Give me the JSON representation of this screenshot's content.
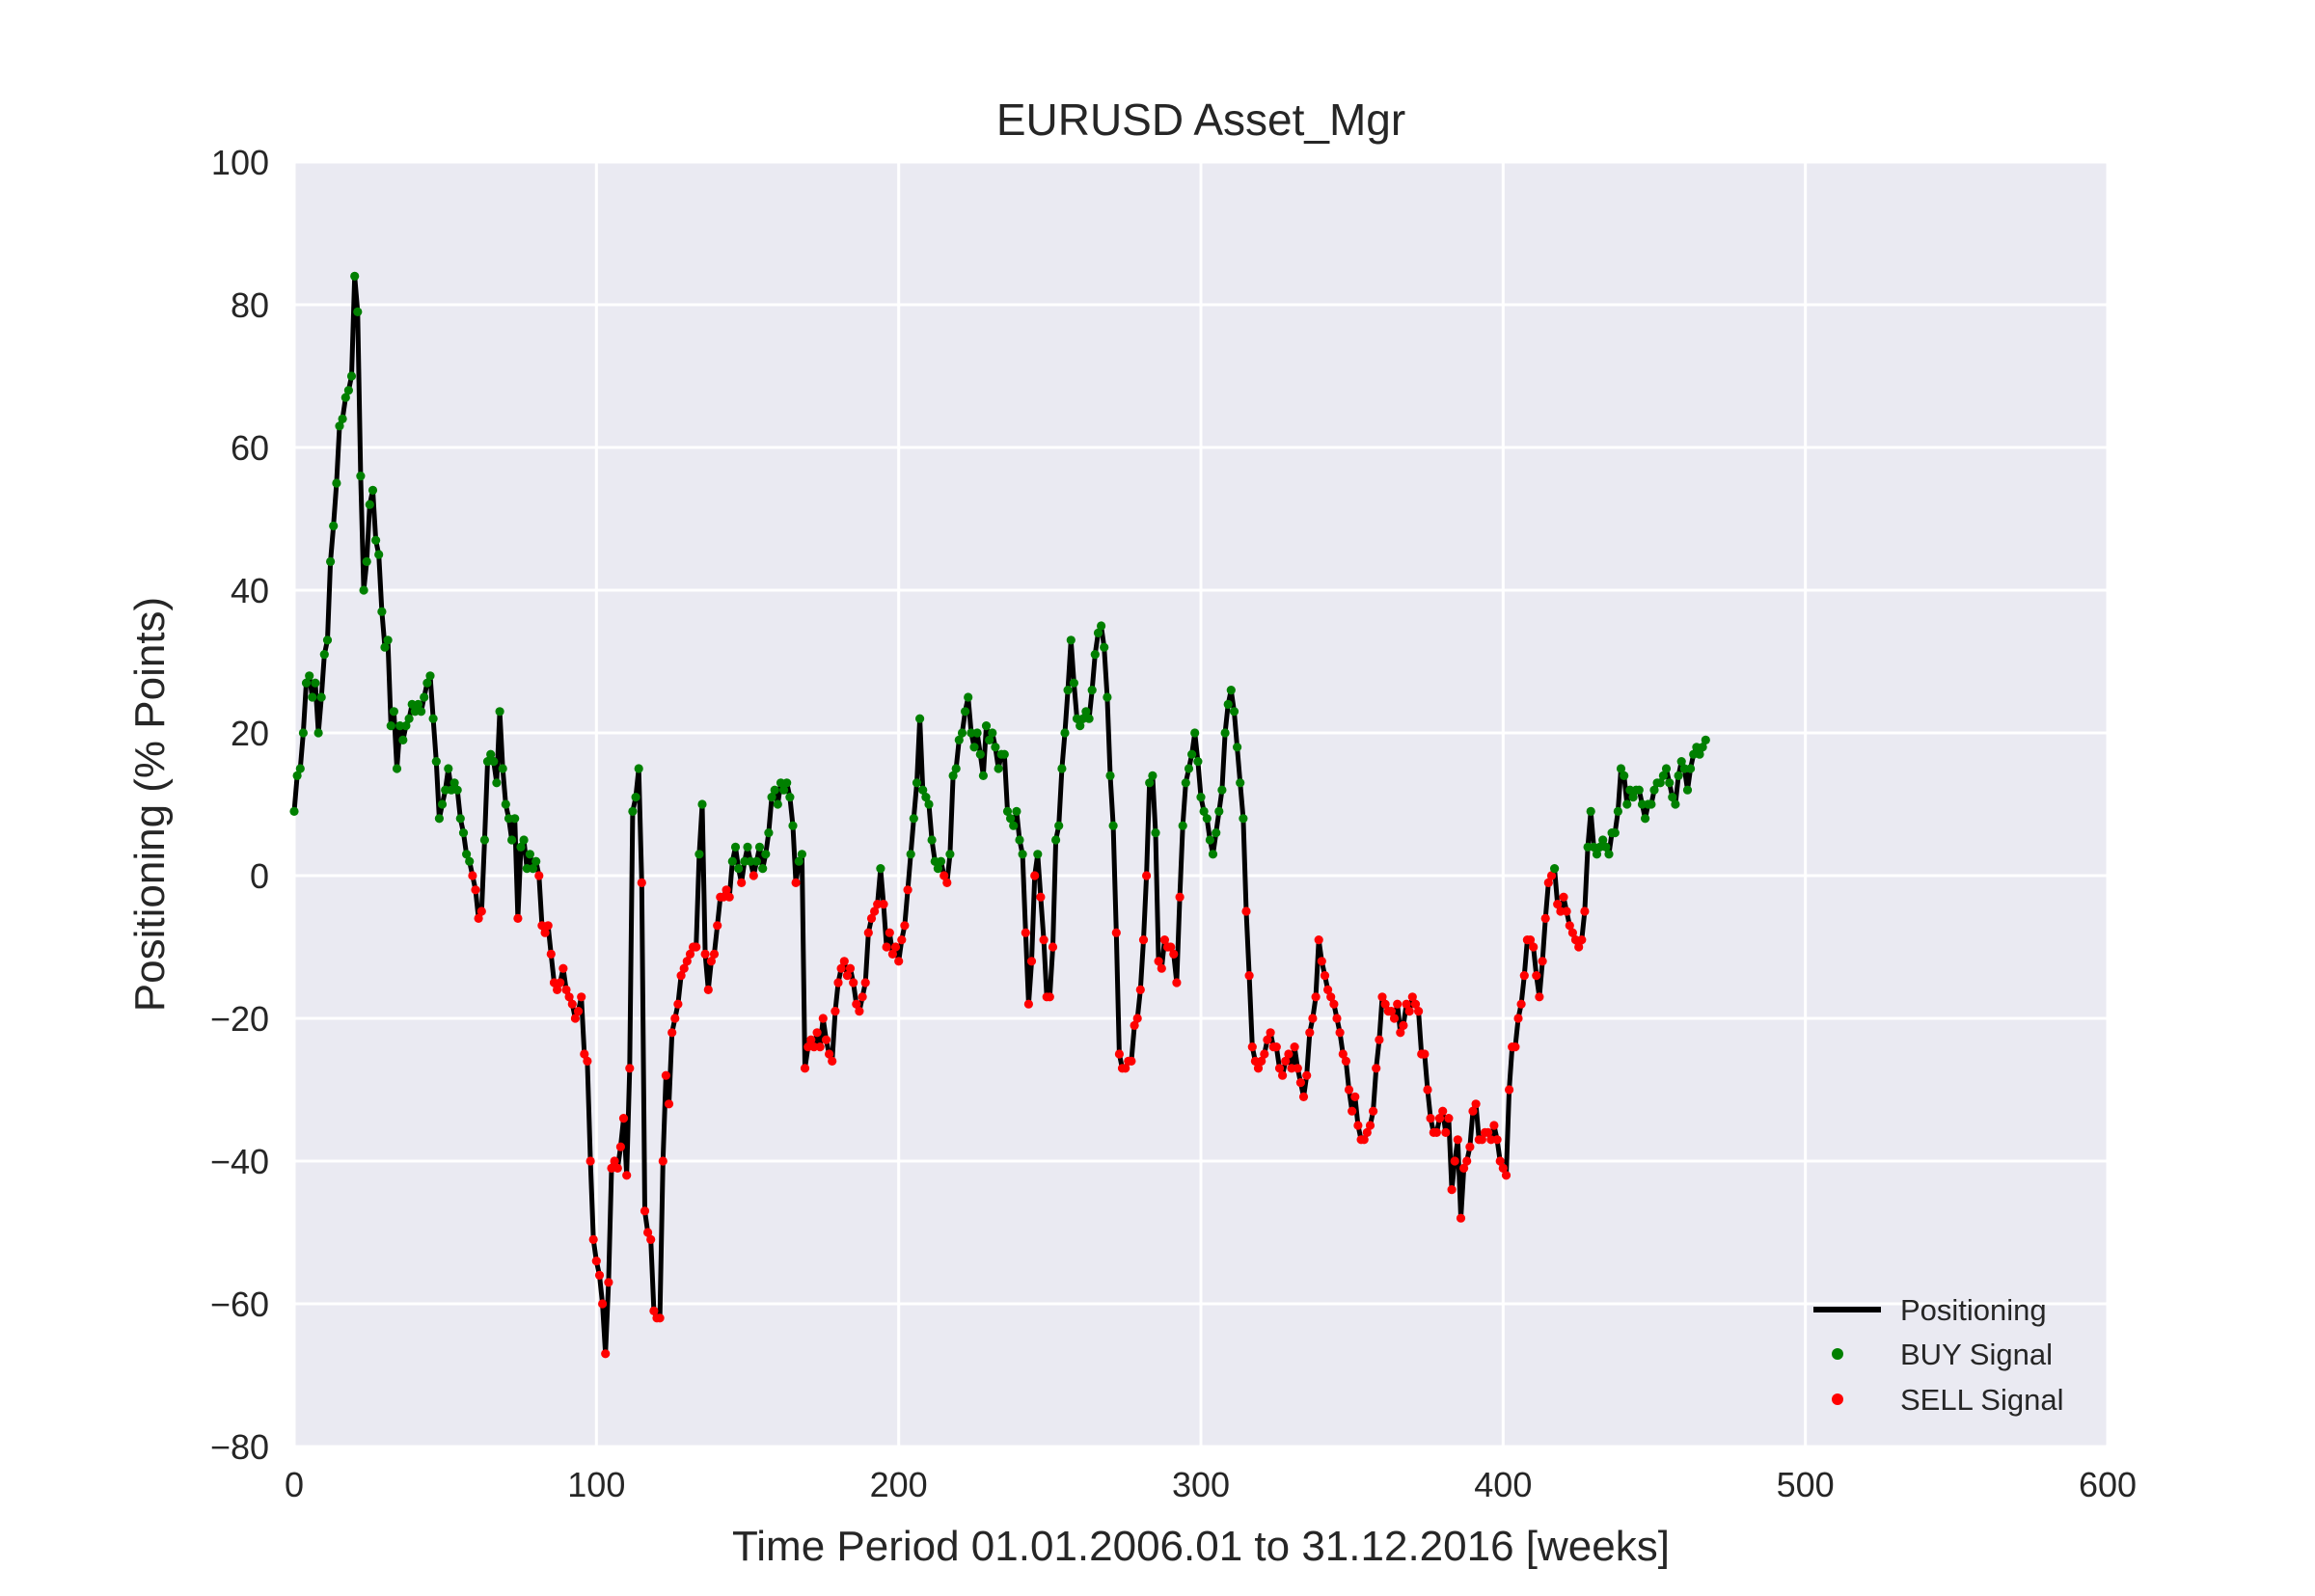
{
  "chart_data": {
    "type": "line",
    "title": "EURUSD Asset_Mgr",
    "xlabel": "Time Period 01.01.2006.01 to 31.12.2016 [weeks]",
    "ylabel": "Positioning (% Points)",
    "xlim": [
      0,
      600
    ],
    "ylim": [
      -80,
      100
    ],
    "xticks": [
      0,
      100,
      200,
      300,
      400,
      500,
      600
    ],
    "yticks": [
      -80,
      -60,
      -40,
      -20,
      0,
      20,
      40,
      60,
      80,
      100
    ],
    "xtick_labels": [
      "0",
      "100",
      "200",
      "300",
      "400",
      "500",
      "600"
    ],
    "ytick_labels": [
      "−80",
      "−60",
      "−40",
      "−20",
      "0",
      "20",
      "40",
      "60",
      "80",
      "100"
    ],
    "grid": true,
    "background_color": "#eaeaf2",
    "legend_position": "lower right",
    "series": [
      {
        "name": "Positioning",
        "marker": "line",
        "color": "#000000",
        "y": [
          9,
          14,
          15,
          20,
          27,
          28,
          25,
          27,
          20,
          25,
          31,
          33,
          44,
          49,
          55,
          63,
          64,
          67,
          68,
          70,
          84,
          79,
          56,
          40,
          44,
          52,
          54,
          47,
          45,
          37,
          32,
          33,
          21,
          23,
          15,
          21,
          19,
          21,
          22,
          24,
          23,
          24,
          23,
          25,
          27,
          28,
          22,
          16,
          8,
          10,
          12,
          15,
          12,
          13,
          12,
          8,
          6,
          3,
          2,
          0,
          -2,
          -6,
          -5,
          5,
          16,
          17,
          16,
          13,
          23,
          15,
          10,
          8,
          5,
          8,
          -6,
          4,
          5,
          1,
          3,
          1,
          2,
          0,
          -7,
          -8,
          -7,
          -11,
          -15,
          -16,
          -15,
          -13,
          -16,
          -17,
          -18,
          -20,
          -19,
          -17,
          -25,
          -26,
          -40,
          -51,
          -54,
          -56,
          -60,
          -67,
          -57,
          -41,
          -40,
          -41,
          -38,
          -34,
          -42,
          -27,
          9,
          11,
          15,
          -1,
          -47,
          -50,
          -51,
          -61,
          -62,
          -62,
          -40,
          -28,
          -32,
          -22,
          -20,
          -18,
          -14,
          -13,
          -12,
          -11,
          -10,
          -10,
          3,
          10,
          -11,
          -16,
          -12,
          -11,
          -7,
          -3,
          -3,
          -2,
          -3,
          2,
          4,
          1,
          -1,
          2,
          4,
          2,
          0,
          2,
          4,
          1,
          3,
          6,
          11,
          12,
          10,
          13,
          12,
          13,
          11,
          7,
          -1,
          2,
          3,
          -27,
          -24,
          -23,
          -24,
          -22,
          -24,
          -20,
          -23,
          -25,
          -26,
          -19,
          -15,
          -13,
          -12,
          -14,
          -13,
          -15,
          -18,
          -19,
          -17,
          -15,
          -8,
          -6,
          -5,
          -4,
          1,
          -4,
          -10,
          -8,
          -11,
          -10,
          -12,
          -9,
          -7,
          -2,
          3,
          8,
          13,
          22,
          12,
          11,
          10,
          5,
          2,
          1,
          2,
          0,
          -1,
          3,
          14,
          15,
          19,
          20,
          23,
          25,
          20,
          18,
          20,
          17,
          14,
          21,
          19,
          20,
          18,
          15,
          17,
          17,
          9,
          8,
          7,
          9,
          5,
          3,
          -8,
          -18,
          -12,
          0,
          3,
          -3,
          -9,
          -17,
          -17,
          -10,
          5,
          7,
          15,
          20,
          26,
          33,
          27,
          22,
          21,
          22,
          23,
          22,
          26,
          31,
          34,
          35,
          32,
          25,
          14,
          7,
          -8,
          -25,
          -27,
          -27,
          -26,
          -26,
          -21,
          -20,
          -16,
          -9,
          0,
          13,
          14,
          6,
          -12,
          -13,
          -9,
          -10,
          -10,
          -11,
          -15,
          -3,
          7,
          13,
          15,
          17,
          20,
          16,
          11,
          9,
          8,
          5,
          3,
          6,
          9,
          12,
          20,
          24,
          26,
          23,
          18,
          13,
          8,
          -5,
          -14,
          -24,
          -26,
          -27,
          -26,
          -25,
          -23,
          -22,
          -24,
          -24,
          -27,
          -28,
          -26,
          -25,
          -27,
          -24,
          -27,
          -29,
          -31,
          -28,
          -22,
          -20,
          -17,
          -9,
          -12,
          -14,
          -16,
          -17,
          -18,
          -20,
          -22,
          -25,
          -26,
          -30,
          -33,
          -31,
          -35,
          -37,
          -37,
          -36,
          -35,
          -33,
          -27,
          -23,
          -17,
          -18,
          -19,
          -19,
          -20,
          -18,
          -22,
          -21,
          -18,
          -19,
          -17,
          -18,
          -19,
          -25,
          -25,
          -30,
          -34,
          -36,
          -36,
          -34,
          -33,
          -36,
          -34,
          -44,
          -40,
          -37,
          -48,
          -41,
          -40,
          -38,
          -33,
          -32,
          -37,
          -37,
          -36,
          -36,
          -37,
          -35,
          -37,
          -40,
          -41,
          -42,
          -30,
          -24,
          -24,
          -20,
          -18,
          -14,
          -9,
          -9,
          -10,
          -14,
          -17,
          -12,
          -6,
          -1,
          0,
          1,
          -4,
          -5,
          -3,
          -5,
          -7,
          -8,
          -9,
          -10,
          -9,
          -5,
          4,
          9,
          4,
          3,
          4,
          5,
          4,
          3,
          6,
          6,
          9,
          15,
          14,
          10,
          12,
          11,
          12,
          12,
          10,
          8,
          10,
          10,
          12,
          13,
          13,
          14,
          15,
          13,
          11,
          10,
          14,
          16,
          15,
          12,
          15,
          17,
          18,
          17,
          18,
          19
        ]
      },
      {
        "name": "BUY Signal",
        "marker": "dot",
        "color": "#008000",
        "rule": "points with y > 0"
      },
      {
        "name": "SELL Signal",
        "marker": "dot",
        "color": "#ff0000",
        "rule": "points with y <= 0"
      }
    ]
  }
}
